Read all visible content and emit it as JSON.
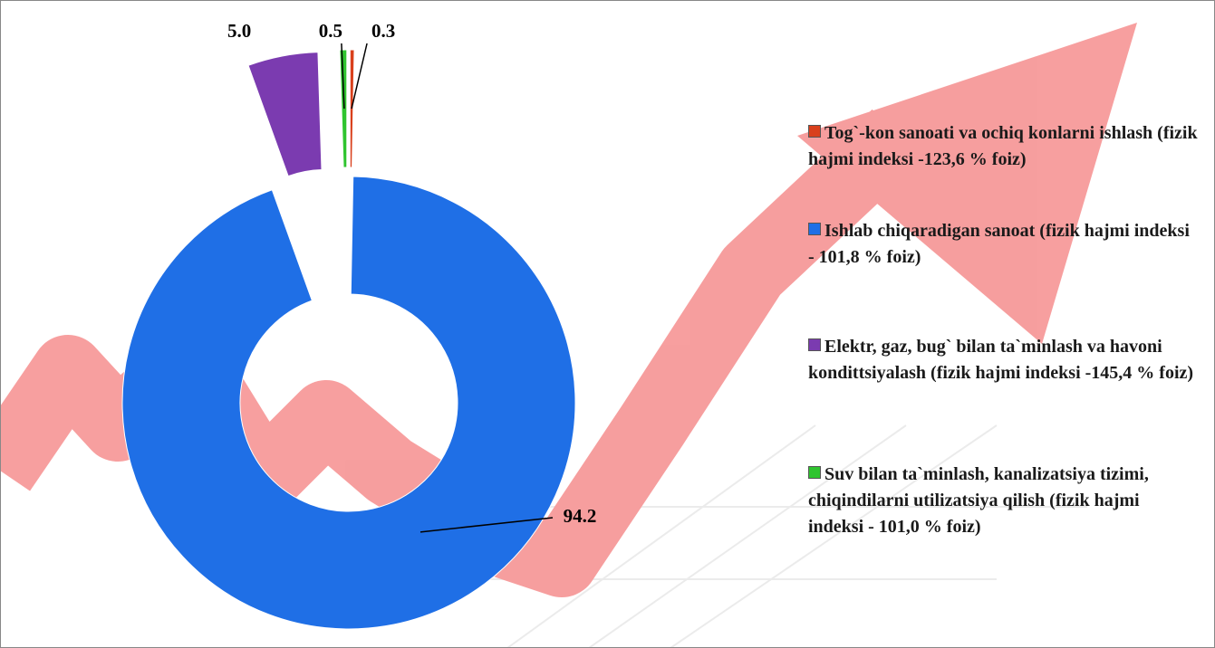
{
  "chart_data": {
    "type": "pie",
    "categories": [
      "Tog`-kon sanoati va ochiq konlarni ishlash (fizik hajmi indeksi -123,6 % foiz)",
      "Ishlab chiqaradigan sanoat (fizik hajmi indeksi - 101,8 % foiz)",
      "Elektr, gaz, bug` bilan ta`minlash va havoni kondittsiyalash (fizik hajmi indeksi -145,4 % foiz)",
      "Suv bilan ta`minlash, kanalizatsiya tizimi, chiqindilarni utilizatsiya qilish (fizik hajmi indeksi - 101,0 % foiz)"
    ],
    "values": [
      0.3,
      94.2,
      5.0,
      0.5
    ],
    "value_labels": [
      "0.3",
      "94.2",
      "5.0",
      "0.5"
    ],
    "colors": [
      "#d9401c",
      "#1f6fe6",
      "#7b3bb0",
      "#2fc42f"
    ],
    "donut": true,
    "legend": "right"
  }
}
